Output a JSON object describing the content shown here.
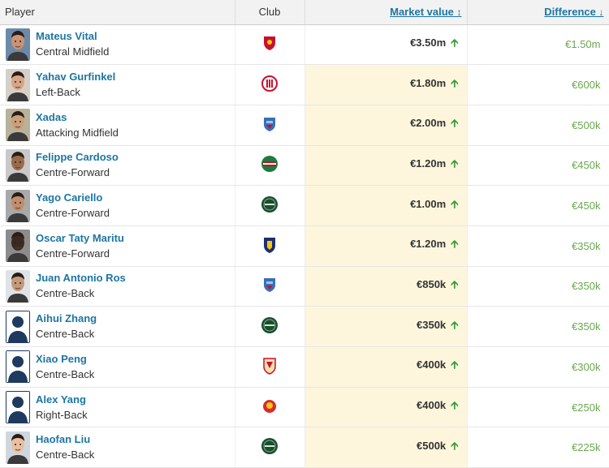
{
  "header": {
    "player": "Player",
    "club": "Club",
    "market_value": "Market value",
    "market_value_sort_icon": "↕",
    "difference": "Difference",
    "difference_sort_icon": "↓"
  },
  "rows": [
    {
      "name": "Mateus Vital",
      "position": "Central Midfield",
      "club_icon": "club-crest-red-shield",
      "value": "€3.50m",
      "difference": "€1.50m",
      "avatar": "photo"
    },
    {
      "name": "Yahav Gurfinkel",
      "position": "Left-Back",
      "club_icon": "club-crest-red-round",
      "value": "€1.80m",
      "difference": "€600k",
      "avatar": "photo"
    },
    {
      "name": "Xadas",
      "position": "Attacking Midfield",
      "club_icon": "club-crest-blue-shield",
      "value": "€2.00m",
      "difference": "€500k",
      "avatar": "photo"
    },
    {
      "name": "Felippe Cardoso",
      "position": "Centre-Forward",
      "club_icon": "club-crest-green-red-round",
      "value": "€1.20m",
      "difference": "€450k",
      "avatar": "photo"
    },
    {
      "name": "Yago Cariello",
      "position": "Centre-Forward",
      "club_icon": "club-crest-dark-green-round",
      "value": "€1.00m",
      "difference": "€450k",
      "avatar": "photo"
    },
    {
      "name": "Oscar Taty Maritu",
      "position": "Centre-Forward",
      "club_icon": "club-crest-navy-shield",
      "value": "€1.20m",
      "difference": "€350k",
      "avatar": "photo"
    },
    {
      "name": "Juan Antonio Ros",
      "position": "Centre-Back",
      "club_icon": "club-crest-blue-shield",
      "value": "€850k",
      "difference": "€350k",
      "avatar": "photo"
    },
    {
      "name": "Aihui Zhang",
      "position": "Centre-Back",
      "club_icon": "club-crest-dark-green-round",
      "value": "€350k",
      "difference": "€350k",
      "avatar": "silhouette"
    },
    {
      "name": "Xiao Peng",
      "position": "Centre-Back",
      "club_icon": "club-crest-red-gold-shield",
      "value": "€400k",
      "difference": "€300k",
      "avatar": "silhouette"
    },
    {
      "name": "Alex Yang",
      "position": "Right-Back",
      "club_icon": "club-crest-red-yellow",
      "value": "€400k",
      "difference": "€250k",
      "avatar": "silhouette"
    },
    {
      "name": "Haofan Liu",
      "position": "Centre-Back",
      "club_icon": "club-crest-dark-green-round",
      "value": "€500k",
      "difference": "€225k",
      "avatar": "photo"
    }
  ],
  "colors": {
    "link": "#1d75a3",
    "highlight_bg": "#fdf6dd",
    "diff_green": "#6aa84f",
    "arrow_green": "#3a9a3a",
    "silhouette": "#1e3a5f"
  }
}
